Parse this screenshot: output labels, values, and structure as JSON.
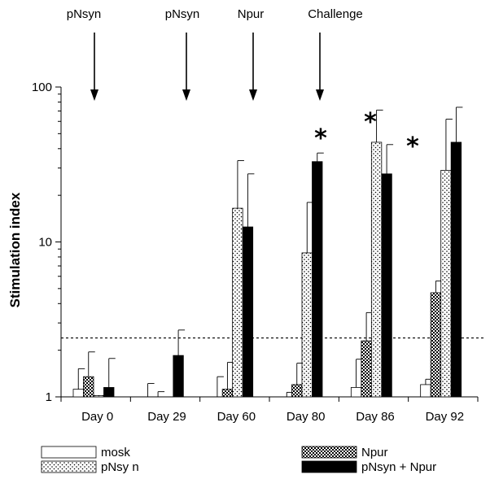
{
  "chart_data": {
    "type": "bar",
    "ylabel": "Stimulation index",
    "xlabel": "",
    "yscale": "log",
    "ylim": [
      1,
      100
    ],
    "yticks": [
      1,
      10,
      100
    ],
    "categories": [
      "Day 0",
      "Day 29",
      "Day 60",
      "Day 80",
      "Day 86",
      "Day 92"
    ],
    "series": [
      {
        "name": "mosk",
        "pattern": "white",
        "values": [
          1.12,
          1.0,
          1.0,
          1.0,
          1.15,
          1.2
        ],
        "errors": [
          0.4,
          0.22,
          0.35,
          0.07,
          0.6,
          0.1
        ]
      },
      {
        "name": "Npur",
        "pattern": "checker",
        "values": [
          1.35,
          1.0,
          1.12,
          1.2,
          2.3,
          4.7
        ],
        "errors": [
          0.6,
          0.08,
          0.55,
          0.45,
          1.2,
          0.9
        ]
      },
      {
        "name": "pNsy n",
        "pattern": "dots",
        "values": [
          1.02,
          1.0,
          16.5,
          8.5,
          44,
          29
        ],
        "errors": [
          0.0,
          0.0,
          17,
          9.5,
          27,
          33
        ]
      },
      {
        "name": "pNsyn + Npur",
        "pattern": "black",
        "values": [
          1.15,
          1.85,
          12.5,
          33,
          27.5,
          44
        ],
        "errors": [
          0.62,
          0.85,
          15,
          4.5,
          15,
          30
        ]
      }
    ],
    "threshold": 2.4,
    "significance": [
      "*",
      "*",
      "*"
    ],
    "top_annotations": [
      "pNsyn",
      "pNsyn",
      "Npur",
      "Challenge"
    ]
  },
  "legend": [
    {
      "name": "mosk"
    },
    {
      "name": "pNsy n"
    },
    {
      "name": "Npur"
    },
    {
      "name": "pNsyn + Npur"
    }
  ]
}
